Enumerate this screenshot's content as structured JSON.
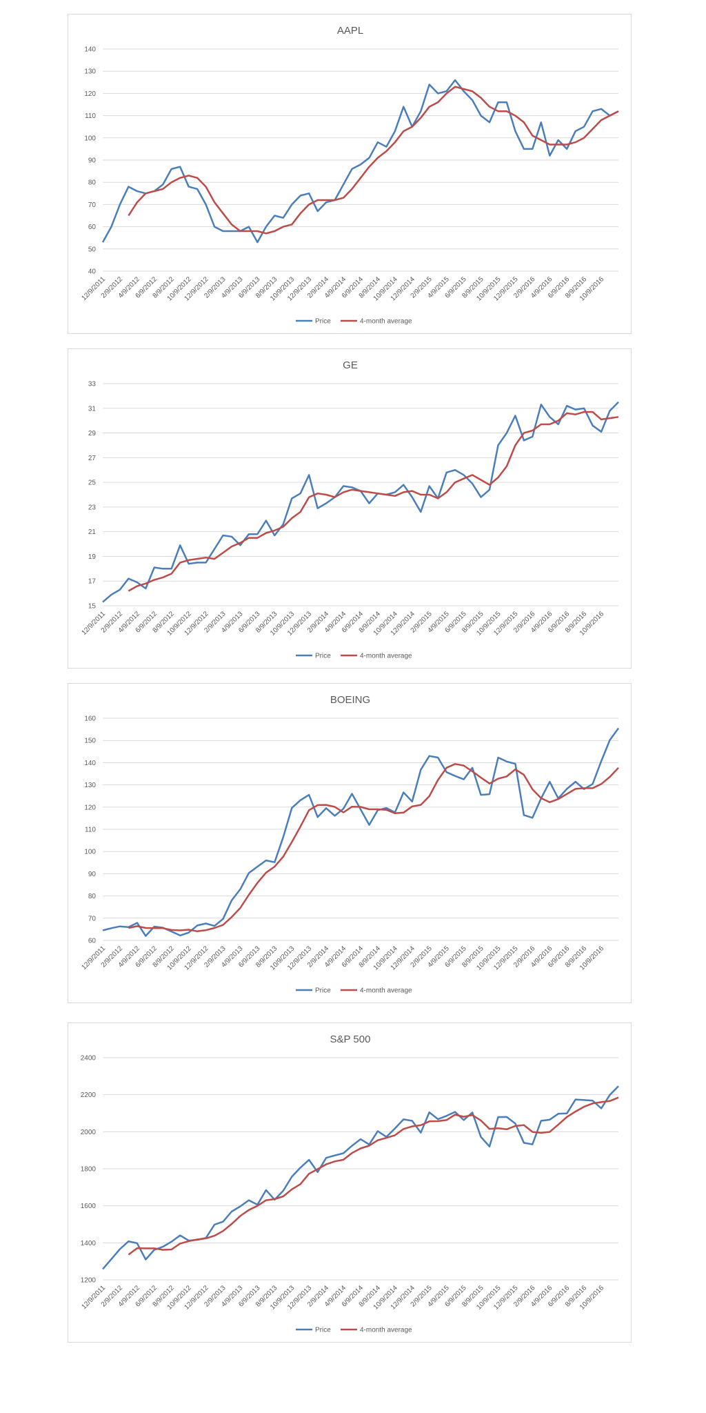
{
  "chart_data": [
    {
      "type": "line",
      "title": "AAPL",
      "ylim": [
        40,
        140
      ],
      "yticks": [
        40,
        50,
        60,
        70,
        80,
        90,
        100,
        110,
        120,
        130,
        140
      ],
      "xtick_labels": [
        "12/9/2011",
        "2/9/2012",
        "4/9/2012",
        "6/9/2012",
        "8/9/2012",
        "10/9/2012",
        "12/9/2012",
        "2/9/2013",
        "4/9/2013",
        "6/9/2013",
        "8/9/2013",
        "10/9/2013",
        "12/9/2013",
        "2/9/2014",
        "4/9/2014",
        "6/9/2014",
        "8/9/2014",
        "10/9/2014",
        "12/9/2014",
        "2/9/2015",
        "4/9/2015",
        "6/9/2015",
        "8/9/2015",
        "10/9/2015",
        "12/9/2015",
        "2/9/2016",
        "4/9/2016",
        "6/9/2016",
        "8/9/2016",
        "10/9/2016"
      ],
      "grid": true,
      "legend_position": "bottom",
      "series": [
        {
          "name": "Price",
          "color": "#4a7ebb",
          "values": [
            53,
            60,
            70,
            78,
            76,
            75,
            76,
            79,
            86,
            87,
            78,
            77,
            70,
            60,
            58,
            58,
            58,
            60,
            53,
            60,
            65,
            64,
            70,
            74,
            75,
            67,
            71,
            72,
            79,
            86,
            88,
            91,
            98,
            96,
            103,
            114,
            105,
            112,
            124,
            120,
            121,
            126,
            121,
            117,
            110,
            107,
            116,
            116,
            103,
            95,
            95,
            107,
            92,
            99,
            95,
            103,
            105,
            112,
            113,
            110,
            112
          ]
        },
        {
          "name": "4-month average",
          "color": "#be4b48",
          "values": [
            null,
            null,
            null,
            65,
            71,
            75,
            76,
            77,
            80,
            82,
            83,
            82,
            78,
            71,
            66,
            61,
            58,
            58,
            58,
            57,
            58,
            60,
            61,
            66,
            70,
            72,
            72,
            72,
            73,
            77,
            82,
            87,
            91,
            94,
            98,
            103,
            105,
            109,
            114,
            116,
            120,
            123,
            122,
            121,
            118,
            114,
            112,
            112,
            110,
            107,
            101,
            99,
            97,
            97,
            97,
            98,
            100,
            104,
            108,
            110,
            112
          ]
        }
      ]
    },
    {
      "type": "line",
      "title": "GE",
      "ylim": [
        15,
        33
      ],
      "yticks": [
        15,
        17,
        19,
        21,
        23,
        25,
        27,
        29,
        31,
        33
      ],
      "xtick_labels": [
        "12/9/2011",
        "2/9/2012",
        "4/9/2012",
        "6/9/2012",
        "8/9/2012",
        "10/9/2012",
        "12/9/2012",
        "2/9/2013",
        "4/9/2013",
        "6/9/2013",
        "8/9/2013",
        "10/9/2013",
        "12/9/2013",
        "2/9/2014",
        "4/9/2014",
        "6/9/2014",
        "8/9/2014",
        "10/9/2014",
        "12/9/2014",
        "2/9/2015",
        "4/9/2015",
        "6/9/2015",
        "8/9/2015",
        "10/9/2015",
        "12/9/2015",
        "2/9/2016",
        "4/9/2016",
        "6/9/2016",
        "8/9/2016",
        "10/9/2016"
      ],
      "grid": true,
      "legend_position": "bottom",
      "series": [
        {
          "name": "Price",
          "color": "#4a7ebb",
          "values": [
            15.3,
            15.9,
            16.3,
            17.2,
            16.9,
            16.4,
            18.1,
            18.0,
            18.0,
            19.9,
            18.4,
            18.5,
            18.5,
            19.6,
            20.7,
            20.6,
            19.9,
            20.8,
            20.8,
            21.9,
            20.7,
            21.6,
            23.7,
            24.1,
            25.6,
            22.9,
            23.3,
            23.8,
            24.7,
            24.6,
            24.3,
            23.3,
            24.1,
            24.0,
            24.2,
            24.8,
            23.8,
            22.6,
            24.7,
            23.7,
            25.8,
            26.0,
            25.6,
            24.9,
            23.8,
            24.4,
            28.0,
            29.0,
            30.4,
            28.4,
            28.7,
            31.3,
            30.3,
            29.7,
            31.2,
            30.9,
            31.0,
            29.6,
            29.1,
            30.8,
            31.5
          ]
        },
        {
          "name": "4-month average",
          "color": "#be4b48",
          "values": [
            null,
            null,
            null,
            16.2,
            16.6,
            16.8,
            17.1,
            17.3,
            17.6,
            18.5,
            18.7,
            18.8,
            18.9,
            18.8,
            19.3,
            19.8,
            20.1,
            20.5,
            20.5,
            20.9,
            21.1,
            21.4,
            22.1,
            22.6,
            23.8,
            24.1,
            24.0,
            23.8,
            24.2,
            24.4,
            24.3,
            24.2,
            24.1,
            24.0,
            23.9,
            24.2,
            24.3,
            24.0,
            24.0,
            23.7,
            24.2,
            25.0,
            25.3,
            25.6,
            25.2,
            24.8,
            25.4,
            26.3,
            28.0,
            29.0,
            29.2,
            29.7,
            29.7,
            30.0,
            30.6,
            30.5,
            30.7,
            30.7,
            30.1,
            30.2,
            30.3
          ]
        }
      ]
    },
    {
      "type": "line",
      "title": "BOEING",
      "ylim": [
        60,
        160
      ],
      "yticks": [
        60,
        70,
        80,
        90,
        100,
        110,
        120,
        130,
        140,
        150,
        160
      ],
      "xtick_labels": [
        "12/9/2011",
        "2/9/2012",
        "4/9/2012",
        "6/9/2012",
        "8/9/2012",
        "10/9/2012",
        "12/9/2012",
        "2/9/2013",
        "4/9/2013",
        "6/9/2013",
        "8/9/2013",
        "10/9/2013",
        "12/9/2013",
        "2/9/2014",
        "4/9/2014",
        "6/9/2014",
        "8/9/2014",
        "10/9/2014",
        "12/9/2014",
        "2/9/2015",
        "4/9/2015",
        "6/9/2015",
        "8/9/2015",
        "10/9/2015",
        "12/9/2015",
        "2/9/2016",
        "4/9/2016",
        "6/9/2016",
        "8/9/2016",
        "10/9/2016"
      ],
      "grid": true,
      "legend_position": "bottom",
      "series": [
        {
          "name": "Price",
          "color": "#4a7ebb",
          "values": [
            64.5,
            65.5,
            66.3,
            66.0,
            67.9,
            62.0,
            66.2,
            65.7,
            64.0,
            62.2,
            63.5,
            66.7,
            67.6,
            66.5,
            69.7,
            78.0,
            83.0,
            90.3,
            93.2,
            96.0,
            95.2,
            106.5,
            119.6,
            123.1,
            125.5,
            115.5,
            119.5,
            116.1,
            119.3,
            126.0,
            119.0,
            112.0,
            118.6,
            119.6,
            117.6,
            126.6,
            122.5,
            136.8,
            143.0,
            142.3,
            135.7,
            134.0,
            132.5,
            137.7,
            125.5,
            125.8,
            142.3,
            140.5,
            139.5,
            116.4,
            115.2,
            123.9,
            131.4,
            123.9,
            128.2,
            131.4,
            128.1,
            130.4,
            140.7,
            150.2,
            155.5
          ]
        },
        {
          "name": "4-month average",
          "color": "#be4b48",
          "values": [
            null,
            null,
            null,
            65.6,
            66.4,
            65.6,
            65.5,
            65.5,
            64.7,
            64.5,
            64.8,
            64.1,
            64.6,
            65.6,
            67.0,
            70.5,
            74.6,
            80.5,
            85.9,
            90.5,
            93.2,
            97.7,
            104.3,
            111.2,
            118.6,
            120.9,
            121.0,
            120.1,
            117.6,
            120.2,
            120.1,
            119.0,
            119.0,
            118.8,
            117.2,
            117.5,
            120.3,
            121.0,
            124.9,
            132.2,
            137.7,
            139.4,
            138.7,
            136.1,
            133.3,
            130.6,
            132.8,
            133.8,
            137.0,
            134.5,
            128.0,
            124.0,
            122.2,
            123.6,
            125.9,
            128.2,
            128.5,
            128.5,
            130.4,
            133.6,
            137.7
          ]
        }
      ]
    },
    {
      "type": "line",
      "title": "S&P 500",
      "ylim": [
        1200,
        2400
      ],
      "yticks": [
        1200,
        1400,
        1600,
        1800,
        2000,
        2200,
        2400
      ],
      "xtick_labels": [
        "12/9/2011",
        "2/9/2012",
        "4/9/2012",
        "6/9/2012",
        "8/9/2012",
        "10/9/2012",
        "12/9/2012",
        "2/9/2013",
        "4/9/2013",
        "6/9/2013",
        "8/9/2013",
        "10/9/2013",
        "12/9/2013",
        "2/9/2014",
        "4/9/2014",
        "6/9/2014",
        "8/9/2014",
        "10/9/2014",
        "12/9/2014",
        "2/9/2015",
        "4/9/2015",
        "6/9/2015",
        "8/9/2015",
        "10/9/2015",
        "12/9/2015",
        "2/9/2016",
        "4/9/2016",
        "6/9/2016",
        "8/9/2016",
        "10/9/2016"
      ],
      "grid": true,
      "legend_position": "bottom",
      "series": [
        {
          "name": "Price",
          "color": "#4a7ebb",
          "values": [
            1258,
            1312,
            1366,
            1408,
            1398,
            1310,
            1362,
            1379,
            1406,
            1440,
            1412,
            1416,
            1426,
            1498,
            1514,
            1569,
            1597,
            1630,
            1606,
            1685,
            1633,
            1681,
            1757,
            1806,
            1848,
            1782,
            1859,
            1872,
            1884,
            1924,
            1960,
            1931,
            2003,
            1972,
            2018,
            2067,
            2059,
            1995,
            2105,
            2068,
            2086,
            2107,
            2063,
            2104,
            1972,
            1920,
            2079,
            2080,
            2044,
            1940,
            1932,
            2059,
            2065,
            2097,
            2099,
            2174,
            2171,
            2168,
            2126,
            2199,
            2246
          ]
        },
        {
          "name": "4-month average",
          "color": "#be4b48",
          "values": [
            null,
            null,
            null,
            1336,
            1371,
            1370,
            1370,
            1362,
            1364,
            1396,
            1409,
            1418,
            1424,
            1438,
            1464,
            1502,
            1545,
            1577,
            1600,
            1630,
            1636,
            1651,
            1689,
            1717,
            1773,
            1798,
            1824,
            1840,
            1849,
            1885,
            1910,
            1925,
            1954,
            1967,
            1981,
            2015,
            2029,
            2035,
            2056,
            2057,
            2063,
            2092,
            2081,
            2090,
            2061,
            2015,
            2019,
            2013,
            2031,
            2036,
            1999,
            1994,
            1999,
            2038,
            2080,
            2109,
            2135,
            2153,
            2160,
            2166,
            2185
          ]
        }
      ]
    }
  ]
}
